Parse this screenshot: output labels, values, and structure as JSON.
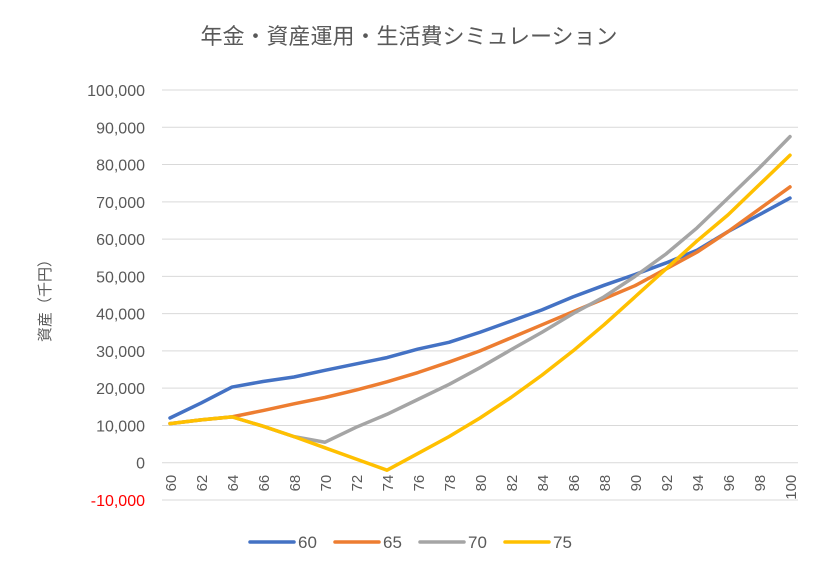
{
  "chart_data": {
    "type": "line",
    "title": "年金・資産運用・生活費シミュレーション",
    "ylabel": "資産（千円）",
    "xlabel": "",
    "ylim": [
      -10000,
      100000
    ],
    "y_ticks": [
      -10000,
      0,
      10000,
      20000,
      30000,
      40000,
      50000,
      60000,
      70000,
      80000,
      90000,
      100000
    ],
    "y_tick_labels": [
      "-10,000",
      "0",
      "10,000",
      "20,000",
      "30,000",
      "40,000",
      "50,000",
      "60,000",
      "70,000",
      "80,000",
      "90,000",
      "100,000"
    ],
    "x_tick_labels": [
      "60",
      "62",
      "64",
      "66",
      "68",
      "70",
      "72",
      "74",
      "76",
      "78",
      "80",
      "82",
      "84",
      "86",
      "88",
      "90",
      "92",
      "94",
      "96",
      "98",
      "100"
    ],
    "x": [
      60,
      62,
      64,
      66,
      68,
      70,
      72,
      74,
      76,
      78,
      80,
      82,
      84,
      86,
      88,
      90,
      92,
      94,
      96,
      98,
      100
    ],
    "grid": true,
    "legend_position": "bottom",
    "series": [
      {
        "name": "60",
        "color": "#4472c4",
        "values": [
          12000,
          16000,
          20300,
          21800,
          23000,
          24800,
          26500,
          28200,
          30500,
          32300,
          35000,
          38000,
          41000,
          44500,
          47600,
          50500,
          53600,
          57000,
          62000,
          66500,
          71000
        ]
      },
      {
        "name": "65",
        "color": "#ed7d31",
        "values": [
          10500,
          11500,
          12300,
          14000,
          15800,
          17500,
          19500,
          21700,
          24200,
          27000,
          30000,
          33500,
          37000,
          40500,
          44000,
          47500,
          52000,
          56500,
          62000,
          68000,
          74000
        ]
      },
      {
        "name": "70",
        "color": "#a5a5a5",
        "values": [
          10500,
          11500,
          12300,
          9800,
          7000,
          5500,
          9500,
          13000,
          17000,
          21000,
          25500,
          30300,
          35000,
          40000,
          44500,
          50000,
          56000,
          63000,
          71000,
          79000,
          87500
        ]
      },
      {
        "name": "75",
        "color": "#ffc000",
        "values": [
          10500,
          11500,
          12300,
          9800,
          7000,
          4000,
          1000,
          -2000,
          2500,
          7000,
          12000,
          17500,
          23500,
          30000,
          37000,
          44500,
          52000,
          59500,
          66500,
          74500,
          82500
        ]
      }
    ]
  }
}
